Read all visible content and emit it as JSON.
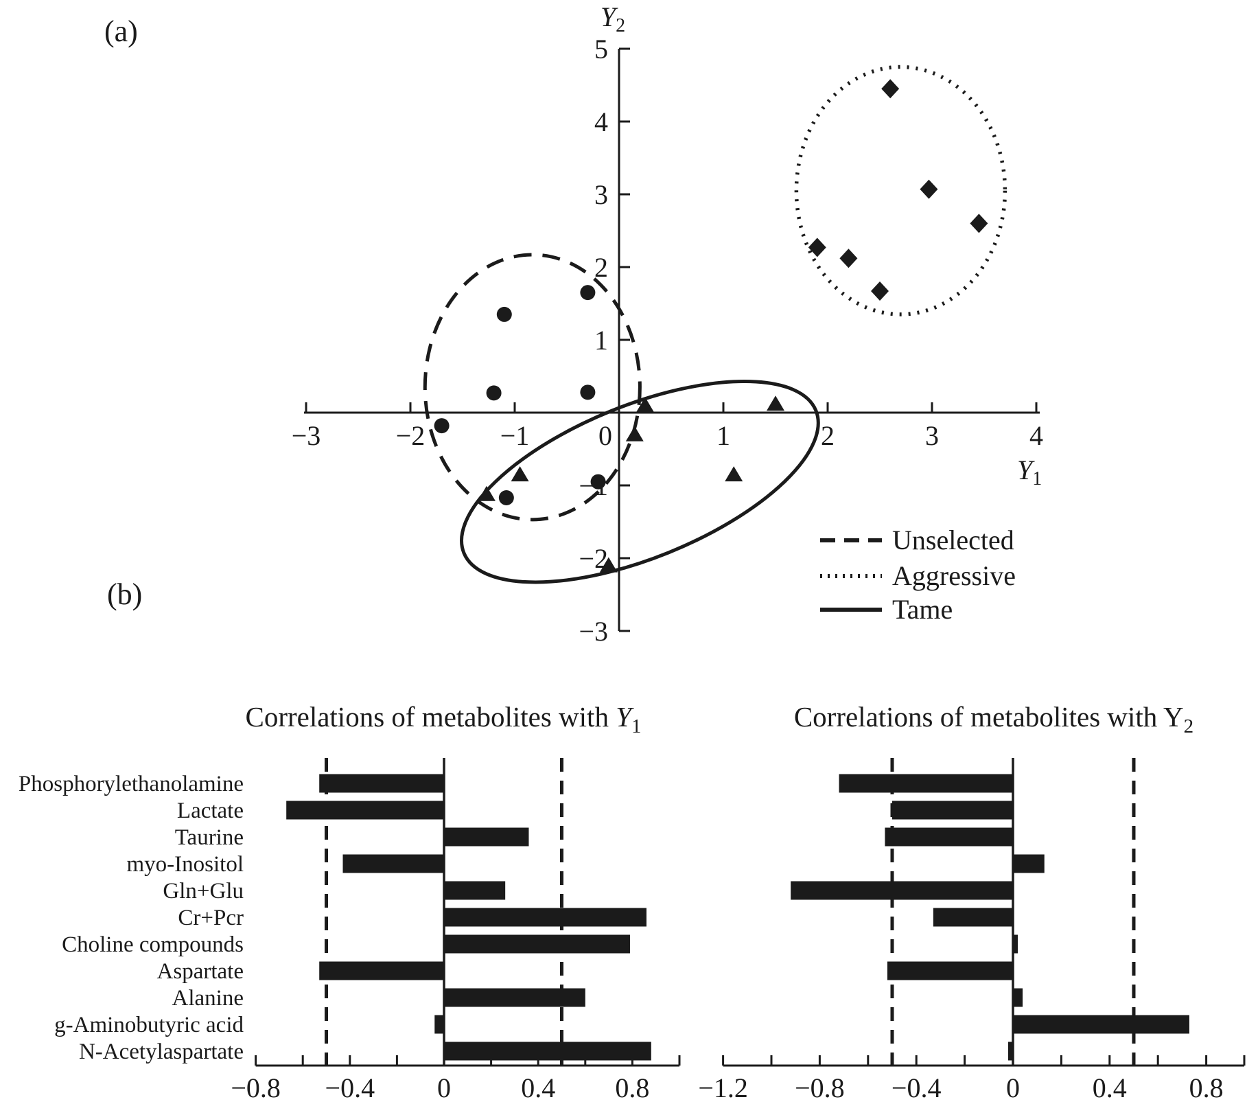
{
  "panels": {
    "a_label": "(a)",
    "b_label": "(b)"
  },
  "colors": {
    "ink": "#1b1b1b",
    "background": "#ffffff"
  },
  "chart_data": [
    {
      "id": "pls_scores_scatter",
      "type": "scatter",
      "xlabel": {
        "var": "Y",
        "sub": "1",
        "italic": true
      },
      "ylabel": {
        "var": "Y",
        "sub": "2",
        "italic": true
      },
      "xlim": [
        -3,
        4
      ],
      "ylim": [
        -3,
        5
      ],
      "x_ticks": [
        -3,
        -2,
        -1,
        0,
        1,
        2,
        3,
        4
      ],
      "y_ticks": [
        5,
        4,
        3,
        2,
        1,
        -1,
        -2,
        -3
      ],
      "grid": false,
      "legend_position": "inside-bottom-right",
      "series": [
        {
          "name": "Unselected",
          "marker": "circle",
          "outline": "dashed",
          "points": [
            [
              -0.3,
              1.65
            ],
            [
              -1.1,
              1.35
            ],
            [
              -1.2,
              0.27
            ],
            [
              -0.3,
              0.28
            ],
            [
              -1.7,
              -0.18
            ],
            [
              -0.2,
              -0.95
            ],
            [
              -1.08,
              -1.17
            ]
          ],
          "ellipse": {
            "cx": -0.83,
            "cy": 0.35,
            "rx": 1.03,
            "ry": 1.82,
            "rotation_deg": 0
          }
        },
        {
          "name": "Aggressive",
          "marker": "diamond",
          "outline": "dotted",
          "points": [
            [
              2.6,
              4.45
            ],
            [
              2.97,
              3.07
            ],
            [
              3.45,
              2.6
            ],
            [
              1.9,
              2.27
            ],
            [
              2.2,
              2.12
            ],
            [
              2.5,
              1.67
            ]
          ],
          "ellipse": {
            "cx": 2.7,
            "cy": 3.05,
            "rx": 1.0,
            "ry": 1.7,
            "rotation_deg": 0
          }
        },
        {
          "name": "Tame",
          "marker": "triangle",
          "outline": "solid",
          "points": [
            [
              0.25,
              0.1
            ],
            [
              1.5,
              0.12
            ],
            [
              0.15,
              -0.3
            ],
            [
              -0.95,
              -0.85
            ],
            [
              1.1,
              -0.85
            ],
            [
              -1.27,
              -1.12
            ],
            [
              -0.1,
              -2.1
            ]
          ],
          "ellipse": {
            "cx": 0.2,
            "cy": -0.95,
            "rx": 1.82,
            "ry": 1.05,
            "rotation_deg": 22
          }
        }
      ],
      "legend": [
        {
          "line_style": "dashed",
          "label": "Unselected"
        },
        {
          "line_style": "dotted",
          "label": "Aggressive"
        },
        {
          "line_style": "solid",
          "label": "Tame"
        }
      ]
    },
    {
      "id": "correlations_y1",
      "type": "bar",
      "orientation": "horizontal",
      "title": {
        "prefix": "Correlations of metabolites with ",
        "var": "Y",
        "var_italic": true,
        "sub": "1"
      },
      "categories": [
        "Phosphorylethanolamine",
        "Lactate",
        "Taurine",
        "myo-Inositol",
        "Gln+Glu",
        "Cr+Pcr",
        "Choline compounds",
        "Aspartate",
        "Alanine",
        "g-Aminobutyric acid",
        "N-Acetylaspartate"
      ],
      "values": [
        -0.53,
        -0.67,
        0.36,
        -0.43,
        0.26,
        0.86,
        0.79,
        -0.53,
        0.6,
        -0.04,
        0.88
      ],
      "xlim": [
        -0.8,
        1.0
      ],
      "x_tick_labels": [
        -0.8,
        -0.4,
        0,
        0.4,
        0.8
      ],
      "minor_tick_step": 0.2,
      "threshold_lines": [
        -0.5,
        0.5
      ],
      "category_labels_shown": true
    },
    {
      "id": "correlations_y2",
      "type": "bar",
      "orientation": "horizontal",
      "title": {
        "prefix": "Correlations of metabolites with ",
        "var": "Y",
        "var_italic": false,
        "sub": "2"
      },
      "categories": [
        "Phosphorylethanolamine",
        "Lactate",
        "Taurine",
        "myo-Inositol",
        "Gln+Glu",
        "Cr+Pcr",
        "Choline compounds",
        "Aspartate",
        "Alanine",
        "g-Aminobutyric acid",
        "N-Acetylaspartate"
      ],
      "values": [
        -0.72,
        -0.5,
        -0.53,
        0.13,
        -0.92,
        -0.33,
        0.02,
        -0.52,
        0.04,
        0.73,
        -0.02
      ],
      "xlim": [
        -1.2,
        1.0
      ],
      "x_tick_labels": [
        -1.2,
        -0.8,
        -0.4,
        0,
        0.4,
        0.8
      ],
      "minor_tick_step": 0.2,
      "threshold_lines": [
        -0.5,
        0.5
      ],
      "category_labels_shown": false
    }
  ]
}
